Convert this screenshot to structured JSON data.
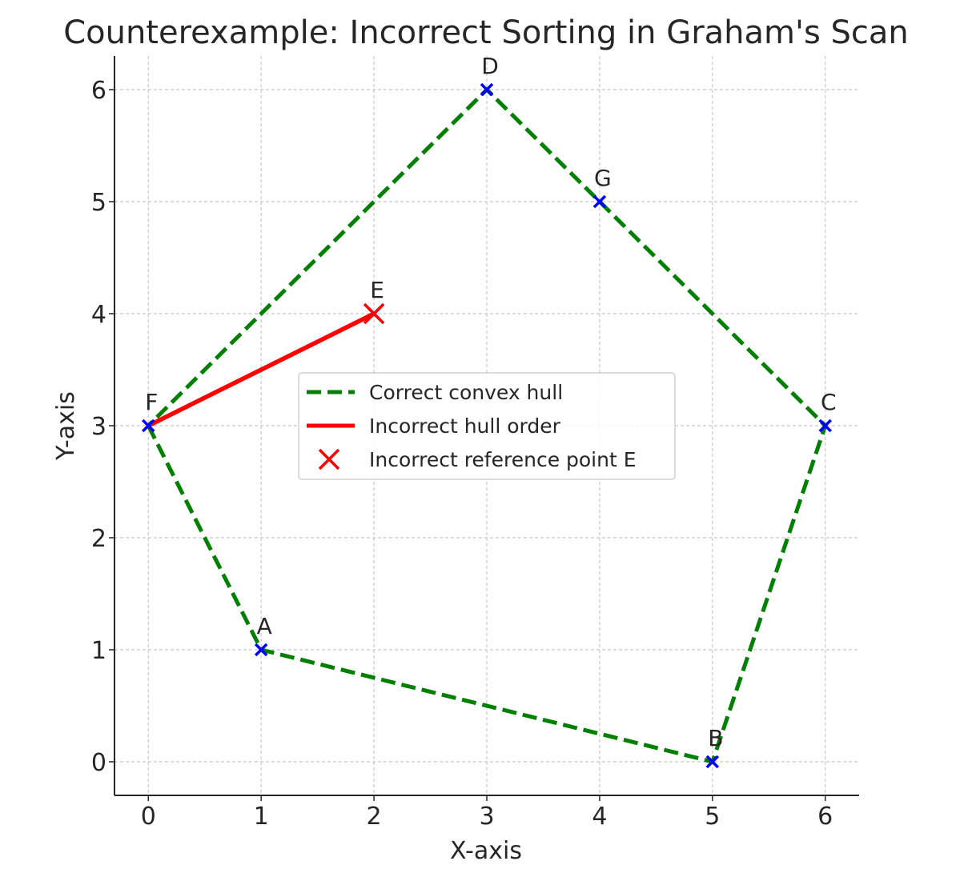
{
  "chart_data": {
    "type": "scatter",
    "title": "Counterexample: Incorrect Sorting in Graham's Scan",
    "xlabel": "X-axis",
    "ylabel": "Y-axis",
    "xlim": [
      -0.3,
      6.3
    ],
    "ylim": [
      -0.3,
      6.3
    ],
    "xticks": [
      0,
      1,
      2,
      3,
      4,
      5,
      6
    ],
    "yticks": [
      0,
      1,
      2,
      3,
      4,
      5,
      6
    ],
    "grid": true,
    "legend_position": "center",
    "colors": {
      "correct_hull": "#007f00",
      "incorrect_order": "#ff0000",
      "points": "#0000ff",
      "reference_point": "#ff0000"
    },
    "points": [
      {
        "label": "A",
        "x": 1,
        "y": 1
      },
      {
        "label": "B",
        "x": 5,
        "y": 0
      },
      {
        "label": "C",
        "x": 6,
        "y": 3
      },
      {
        "label": "D",
        "x": 3,
        "y": 6
      },
      {
        "label": "E",
        "x": 2,
        "y": 4
      },
      {
        "label": "F",
        "x": 0,
        "y": 3
      },
      {
        "label": "G",
        "x": 4,
        "y": 5
      }
    ],
    "series": [
      {
        "name": "Correct convex hull",
        "type": "line",
        "style": "dashed",
        "color": "#007f00",
        "x": [
          0,
          1,
          5,
          6,
          4,
          3,
          0
        ],
        "y": [
          3,
          1,
          0,
          3,
          5,
          6,
          3
        ]
      },
      {
        "name": "Incorrect hull order",
        "type": "line",
        "style": "solid",
        "color": "#ff0000",
        "x": [
          0,
          2
        ],
        "y": [
          3,
          4
        ]
      },
      {
        "name": "Incorrect reference point E",
        "type": "scatter",
        "marker": "x",
        "color": "#ff0000",
        "x": [
          2
        ],
        "y": [
          4
        ]
      }
    ]
  }
}
